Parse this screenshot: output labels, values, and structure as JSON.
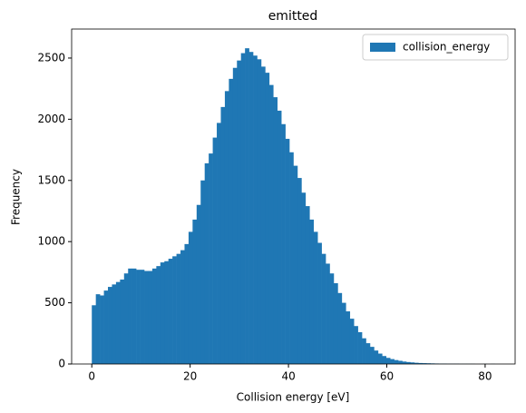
{
  "chart_data": {
    "type": "histogram",
    "title": "emitted",
    "x_label": "Collision energy [eV]",
    "y_label": "Frequency",
    "series": [
      {
        "name": "collision_energy",
        "color": "#1f77b4",
        "bins": [
          0,
          0.82,
          1.64,
          2.46,
          3.28,
          4.1,
          4.92,
          5.74,
          6.56,
          7.38,
          8.2,
          9.02,
          9.84,
          10.66,
          11.48,
          12.3,
          13.12,
          13.94,
          14.76,
          15.58,
          16.4,
          17.22,
          18.04,
          18.86,
          19.68,
          20.5,
          21.32,
          22.14,
          22.96,
          23.78,
          24.6,
          25.42,
          26.24,
          27.06,
          27.88,
          28.7,
          29.52,
          30.34,
          31.16,
          31.98,
          32.8,
          33.62,
          34.44,
          35.26,
          36.08,
          36.9,
          37.72,
          38.54,
          39.36,
          40.18,
          41,
          41.82,
          42.64,
          43.46,
          44.28,
          45.1,
          45.92,
          46.74,
          47.56,
          48.38,
          49.2,
          50.02,
          50.84,
          51.66,
          52.48,
          53.3,
          54.12,
          54.94,
          55.76,
          56.58,
          57.4,
          58.22,
          59.04,
          59.86,
          60.68,
          61.5,
          62.32,
          63.14,
          63.96,
          64.78,
          65.6,
          66.42,
          67.24,
          68.06,
          68.88,
          69.7,
          70.52,
          71.34,
          72.16,
          72.98,
          73.8,
          74.62,
          75.44,
          76.26,
          77.08,
          77.9,
          78.72,
          79.54,
          80.36,
          81.18,
          82
        ],
        "values": [
          480,
          570,
          560,
          600,
          630,
          650,
          670,
          690,
          740,
          780,
          780,
          770,
          770,
          760,
          760,
          780,
          800,
          830,
          840,
          860,
          880,
          900,
          930,
          980,
          1080,
          1180,
          1300,
          1500,
          1640,
          1720,
          1850,
          1970,
          2100,
          2230,
          2330,
          2420,
          2480,
          2540,
          2580,
          2550,
          2520,
          2490,
          2430,
          2380,
          2280,
          2180,
          2070,
          1960,
          1840,
          1730,
          1620,
          1520,
          1400,
          1290,
          1180,
          1080,
          990,
          900,
          820,
          740,
          660,
          580,
          500,
          430,
          370,
          310,
          260,
          210,
          170,
          140,
          110,
          85,
          65,
          50,
          40,
          32,
          26,
          20,
          16,
          13,
          10,
          8,
          7,
          6,
          5,
          4,
          3,
          3,
          2,
          2,
          2,
          1,
          1,
          1,
          1,
          0,
          0,
          1,
          0,
          1
        ]
      }
    ],
    "xlim": [
      -4.1,
      86.1
    ],
    "ylim": [
      0,
      2737
    ],
    "xticks": [
      0,
      20,
      40,
      60,
      80
    ],
    "yticks": [
      0,
      500,
      1000,
      1500,
      2000,
      2500
    ],
    "legend": "upper right"
  }
}
